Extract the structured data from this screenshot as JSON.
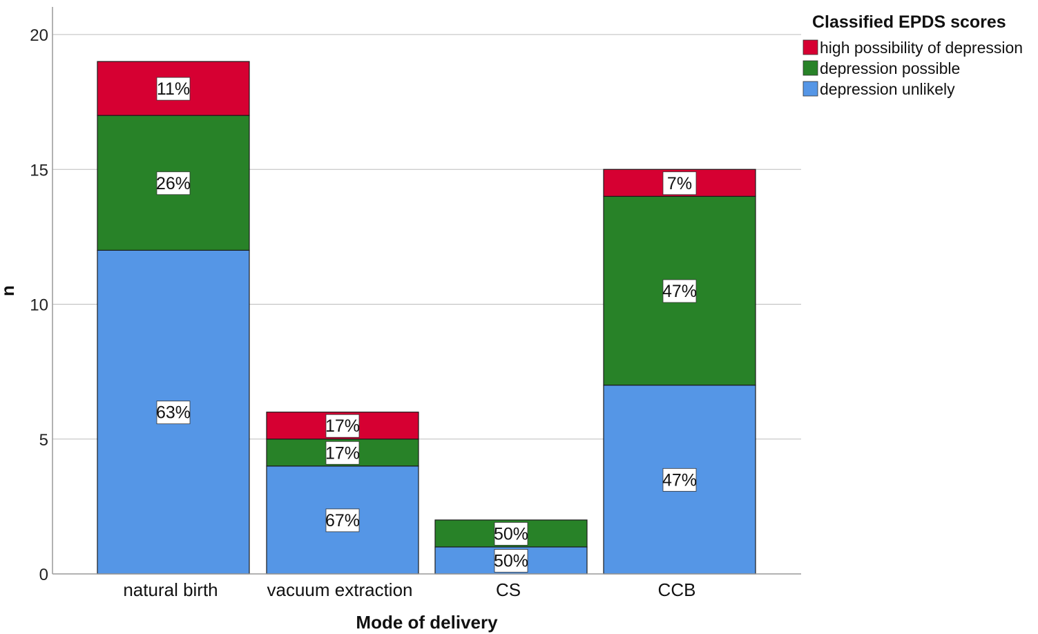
{
  "chart_data": {
    "type": "bar",
    "stacked": true,
    "title": "",
    "xlabel": "Mode of delivery",
    "ylabel": "n",
    "ylim": [
      0,
      20
    ],
    "yticks": [
      0,
      5,
      10,
      15,
      20
    ],
    "grid": true,
    "categories": [
      "natural birth",
      "vacuum extraction",
      "CS",
      "CCB"
    ],
    "legend": {
      "title": "Classified EPDS scores",
      "placement": "top-right"
    },
    "series": [
      {
        "name": "depression unlikely",
        "color": "#5596E6",
        "values": [
          12,
          4,
          1,
          7
        ],
        "labels": [
          "63%",
          "67%",
          "50%",
          "47%"
        ]
      },
      {
        "name": "depression possible",
        "color": "#288228",
        "values": [
          5,
          1,
          1,
          7
        ],
        "labels": [
          "26%",
          "17%",
          "50%",
          "47%"
        ]
      },
      {
        "name": "high possibility of depression",
        "color": "#D60032",
        "values": [
          2,
          1,
          0,
          1
        ],
        "labels": [
          "11%",
          "17%",
          "",
          "7%"
        ]
      }
    ]
  }
}
